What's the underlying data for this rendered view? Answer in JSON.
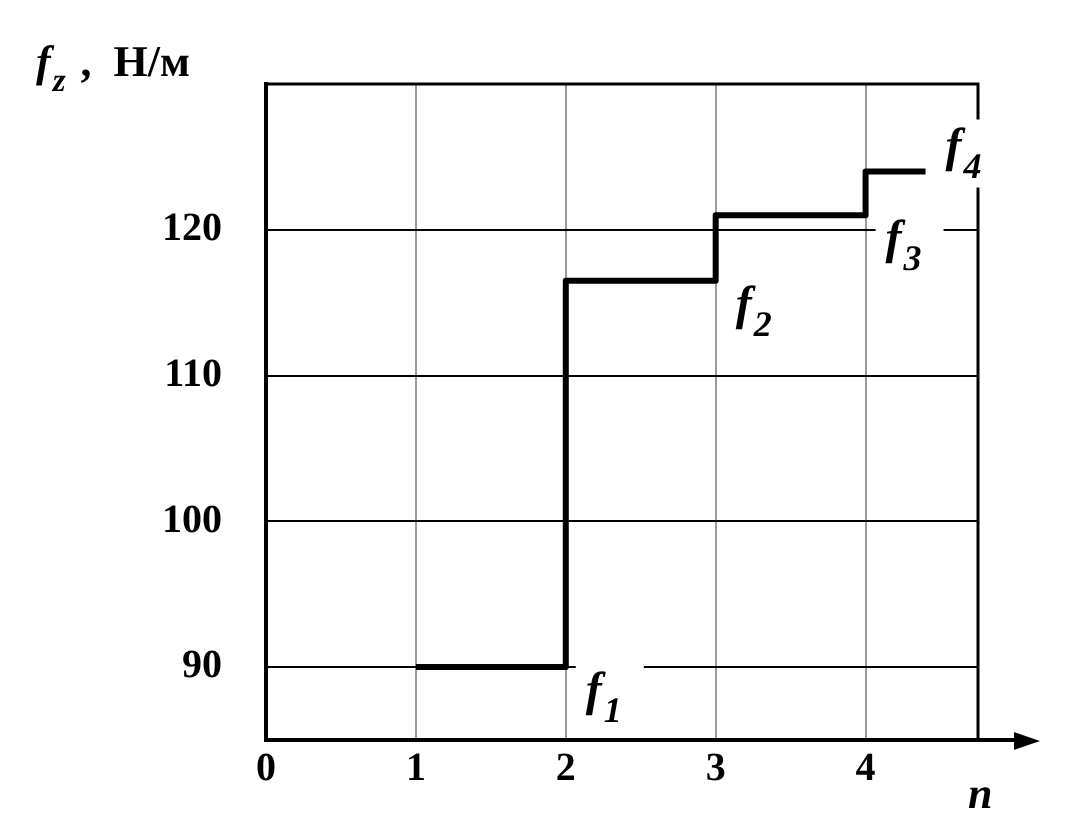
{
  "chart_data": {
    "type": "step",
    "xlabel": "n",
    "ylabel": "f$_{z}$ ,  Н/м",
    "x": [
      1,
      2,
      3,
      4,
      4.4
    ],
    "values": [
      90,
      116.5,
      121,
      124,
      124
    ],
    "color": "#000000",
    "xlim": [
      0,
      4.75
    ],
    "xticks": [
      0,
      1,
      2,
      3,
      4
    ],
    "ylim": [
      85,
      130
    ],
    "yticks": [
      90,
      100,
      110,
      120
    ],
    "grid": true,
    "legend": false,
    "marker": "none",
    "line_style": "solid",
    "annotations": [
      "f$_{1}$",
      "f$_{2}$",
      "f$_{3}$",
      "f$_{4}$"
    ]
  }
}
